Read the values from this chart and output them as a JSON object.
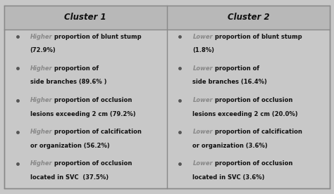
{
  "col1_header": "Cluster 1",
  "col2_header": "Cluster 2",
  "bg_color": "#c8c8c8",
  "header_bg_color": "#b8b8b8",
  "border_color": "#888888",
  "header_text_color": "#111111",
  "keyword_color": "#888888",
  "body_text_color": "#111111",
  "bullet_color": "#555555",
  "col1_rows": [
    {
      "keyword": "Higher",
      "line1": " proportion of blunt stump",
      "line2": "(72.9%)"
    },
    {
      "keyword": "Higher",
      "line1": " proportion of",
      "line2": "side branches (89.6% )"
    },
    {
      "keyword": "Higher",
      "line1": " proportion of occlusion",
      "line2": "lesions exceeding 2 cm (79.2%)"
    },
    {
      "keyword": "Higher",
      "line1": " proportion of calcification",
      "line2": "or organization (56.2%)"
    },
    {
      "keyword": "Higher",
      "line1": " proportion of occlusion",
      "line2": "located in SVC  (37.5%)"
    }
  ],
  "col2_rows": [
    {
      "keyword": "Lower",
      "line1": " proportion of blunt stump",
      "line2": "(1.8%)"
    },
    {
      "keyword": "Lower",
      "line1": " proportion of",
      "line2": "side branches (16.4%)"
    },
    {
      "keyword": "Lower",
      "line1": " proportion of occlusion",
      "line2": "lesions exceeding 2 cm (20.0%)"
    },
    {
      "keyword": "Lower",
      "line1": " proportion of calcification",
      "line2": "or organization (3.6%)"
    },
    {
      "keyword": "Lower",
      "line1": " proportion of occlusion",
      "line2": "located in SVC (3.6%)"
    }
  ],
  "figsize": [
    4.74,
    2.76
  ],
  "dpi": 100
}
